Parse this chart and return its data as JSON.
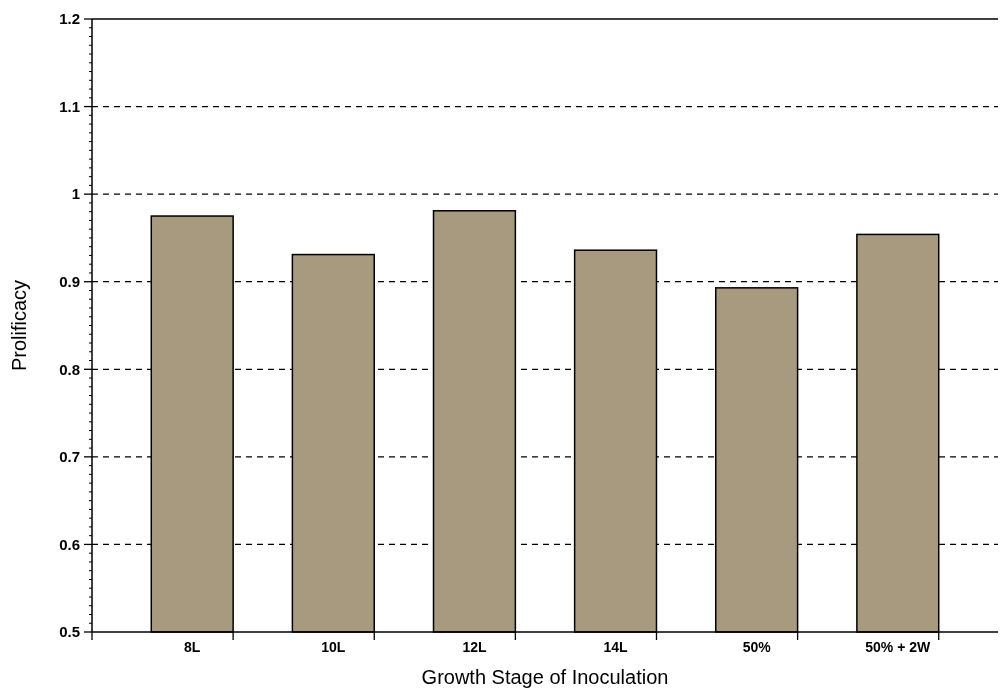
{
  "chart_data": {
    "type": "bar",
    "xlabel": "Growth Stage of Inoculation",
    "ylabel": "Prolificacy",
    "categories": [
      "8L",
      "10L",
      "12L",
      "14L",
      "50%",
      "50% + 2W"
    ],
    "values": [
      0.975,
      0.931,
      0.981,
      0.936,
      0.893,
      0.954
    ],
    "color": "#a89a7e",
    "ylim": [
      0.5,
      1.2
    ],
    "yticks": [
      0.5,
      0.6,
      0.7,
      0.8,
      0.9,
      1,
      1.1,
      1.2
    ],
    "grid": "y"
  }
}
